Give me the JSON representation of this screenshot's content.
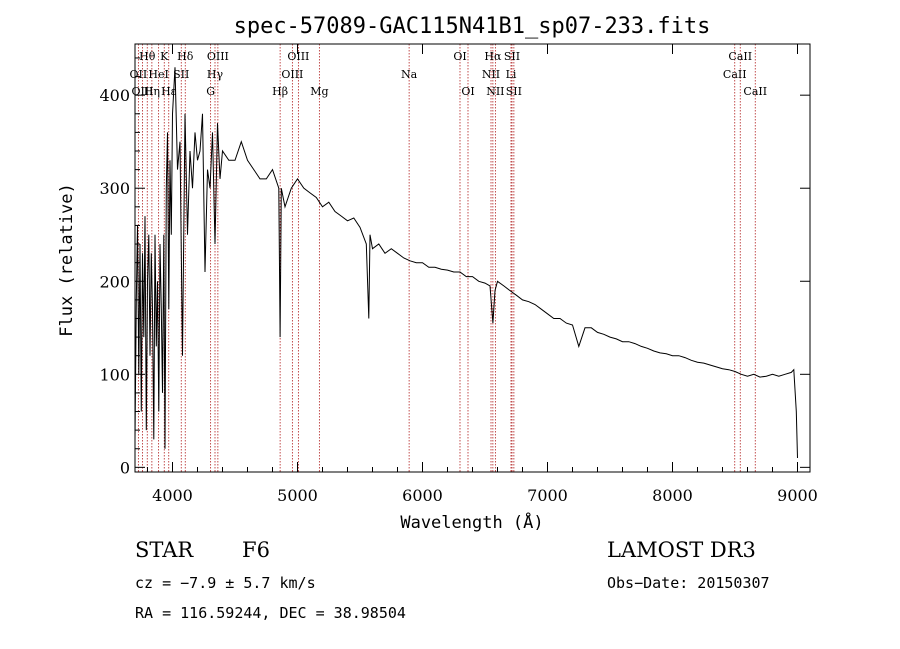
{
  "chart_data": {
    "type": "line",
    "title": "spec-57089-GAC115N41B1_sp07-233.fits",
    "xlabel": "Wavelength (Å)",
    "ylabel": "Flux (relative)",
    "xlim": [
      3700,
      9100
    ],
    "ylim": [
      -5,
      455
    ],
    "xticks": [
      4000,
      5000,
      6000,
      7000,
      8000,
      9000
    ],
    "yticks": [
      0,
      100,
      200,
      300,
      400
    ],
    "series": [
      {
        "name": "spectrum",
        "x": [
          3700,
          3710,
          3720,
          3730,
          3740,
          3750,
          3760,
          3770,
          3780,
          3790,
          3800,
          3810,
          3820,
          3830,
          3840,
          3850,
          3860,
          3870,
          3880,
          3890,
          3900,
          3910,
          3920,
          3930,
          3940,
          3950,
          3960,
          3970,
          3980,
          3990,
          4000,
          4020,
          4040,
          4060,
          4080,
          4100,
          4120,
          4140,
          4160,
          4180,
          4200,
          4220,
          4240,
          4260,
          4280,
          4300,
          4320,
          4340,
          4360,
          4380,
          4400,
          4450,
          4500,
          4550,
          4600,
          4650,
          4700,
          4750,
          4800,
          4850,
          4861,
          4870,
          4900,
          4950,
          5000,
          5050,
          5100,
          5150,
          5200,
          5250,
          5300,
          5350,
          5400,
          5450,
          5500,
          5550,
          5570,
          5580,
          5600,
          5650,
          5700,
          5750,
          5800,
          5850,
          5900,
          5950,
          6000,
          6050,
          6100,
          6150,
          6200,
          6250,
          6300,
          6350,
          6400,
          6450,
          6500,
          6540,
          6563,
          6580,
          6600,
          6650,
          6700,
          6750,
          6800,
          6850,
          6900,
          6950,
          7000,
          7050,
          7100,
          7150,
          7200,
          7250,
          7300,
          7350,
          7400,
          7450,
          7500,
          7550,
          7600,
          7650,
          7700,
          7750,
          7800,
          7850,
          7900,
          7950,
          8000,
          8050,
          8100,
          8150,
          8200,
          8250,
          8300,
          8350,
          8400,
          8450,
          8500,
          8550,
          8600,
          8650,
          8700,
          8750,
          8800,
          8850,
          8900,
          8950,
          8970,
          8990,
          9000
        ],
        "values": [
          30,
          180,
          260,
          100,
          240,
          60,
          230,
          140,
          270,
          40,
          200,
          250,
          120,
          230,
          170,
          30,
          250,
          130,
          200,
          60,
          240,
          170,
          80,
          250,
          20,
          300,
          360,
          170,
          330,
          250,
          380,
          430,
          320,
          350,
          120,
          380,
          250,
          340,
          300,
          360,
          330,
          340,
          380,
          210,
          320,
          300,
          360,
          240,
          370,
          310,
          340,
          330,
          330,
          350,
          330,
          320,
          310,
          310,
          320,
          300,
          140,
          300,
          280,
          300,
          310,
          300,
          295,
          290,
          280,
          285,
          275,
          270,
          265,
          268,
          258,
          240,
          160,
          250,
          235,
          240,
          230,
          235,
          230,
          225,
          222,
          220,
          220,
          215,
          215,
          213,
          212,
          210,
          210,
          205,
          205,
          200,
          198,
          195,
          155,
          190,
          200,
          195,
          190,
          185,
          180,
          178,
          175,
          170,
          165,
          160,
          160,
          155,
          153,
          130,
          150,
          150,
          145,
          143,
          140,
          138,
          135,
          135,
          133,
          130,
          128,
          125,
          123,
          122,
          120,
          120,
          118,
          115,
          113,
          112,
          110,
          108,
          106,
          105,
          103,
          100,
          98,
          100,
          97,
          98,
          100,
          98,
          100,
          102,
          105,
          60,
          10
        ]
      }
    ],
    "lines": [
      {
        "name": "H-theta",
        "label": "Hθ",
        "wl": 3798,
        "row": 0
      },
      {
        "name": "OII",
        "label": "OII",
        "wl": 3727,
        "row": 1
      },
      {
        "name": "OIII-a",
        "label": "OIII",
        "wl": 3760,
        "row": 2
      },
      {
        "name": "H-eta",
        "label": "Hη",
        "wl": 3835,
        "row": 2
      },
      {
        "name": "HeI",
        "label": "HeI",
        "wl": 3889,
        "row": 1
      },
      {
        "name": "H-epsilon",
        "label": "Hε",
        "wl": 3970,
        "row": 2
      },
      {
        "name": "K",
        "label": "K",
        "wl": 3934,
        "row": 0
      },
      {
        "name": "SII-a",
        "label": "SII",
        "wl": 4070,
        "row": 1
      },
      {
        "name": "H-delta",
        "label": "Hδ",
        "wl": 4102,
        "row": 0
      },
      {
        "name": "OIII-b",
        "label": "OIII",
        "wl": 4363,
        "row": 0
      },
      {
        "name": "H-gamma",
        "label": "Hγ",
        "wl": 4340,
        "row": 1
      },
      {
        "name": "G",
        "label": "G",
        "wl": 4305,
        "row": 2
      },
      {
        "name": "H-beta",
        "label": "Hβ",
        "wl": 4861,
        "row": 2
      },
      {
        "name": "OIII-c",
        "label": "OIII",
        "wl": 5007,
        "row": 0
      },
      {
        "name": "OIII-d",
        "label": "OIII",
        "wl": 4959,
        "row": 1
      },
      {
        "name": "Mg",
        "label": "Mg",
        "wl": 5175,
        "row": 2
      },
      {
        "name": "Na",
        "label": "Na",
        "wl": 5893,
        "row": 1
      },
      {
        "name": "OI-a",
        "label": "OI",
        "wl": 6300,
        "row": 0
      },
      {
        "name": "OI-b",
        "label": "OI",
        "wl": 6364,
        "row": 2
      },
      {
        "name": "H-alpha",
        "label": "Hα",
        "wl": 6563,
        "row": 0
      },
      {
        "name": "NII-a",
        "label": "NII",
        "wl": 6548,
        "row": 1
      },
      {
        "name": "NII-b",
        "label": "NII",
        "wl": 6583,
        "row": 2
      },
      {
        "name": "SII-b",
        "label": "SII",
        "wl": 6716,
        "row": 0
      },
      {
        "name": "Li",
        "label": "Li",
        "wl": 6708,
        "row": 1
      },
      {
        "name": "SII-c",
        "label": "SII",
        "wl": 6731,
        "row": 2
      },
      {
        "name": "CaII-a",
        "label": "CaII",
        "wl": 8542,
        "row": 0
      },
      {
        "name": "CaII-b",
        "label": "CaII",
        "wl": 8498,
        "row": 1
      },
      {
        "name": "CaII-c",
        "label": "CaII",
        "wl": 8662,
        "row": 2
      }
    ]
  },
  "info": {
    "class": "STAR",
    "subclass": "F6",
    "survey": "LAMOST DR3",
    "cz": "cz = −7.9 ± 5.7 km/s",
    "obs_date": "Obs−Date: 20150307",
    "coords": "RA = 116.59244, DEC =  38.98504"
  },
  "colors": {
    "line_marker": "#b22222",
    "spectrum": "#000000",
    "axes": "#000000"
  }
}
